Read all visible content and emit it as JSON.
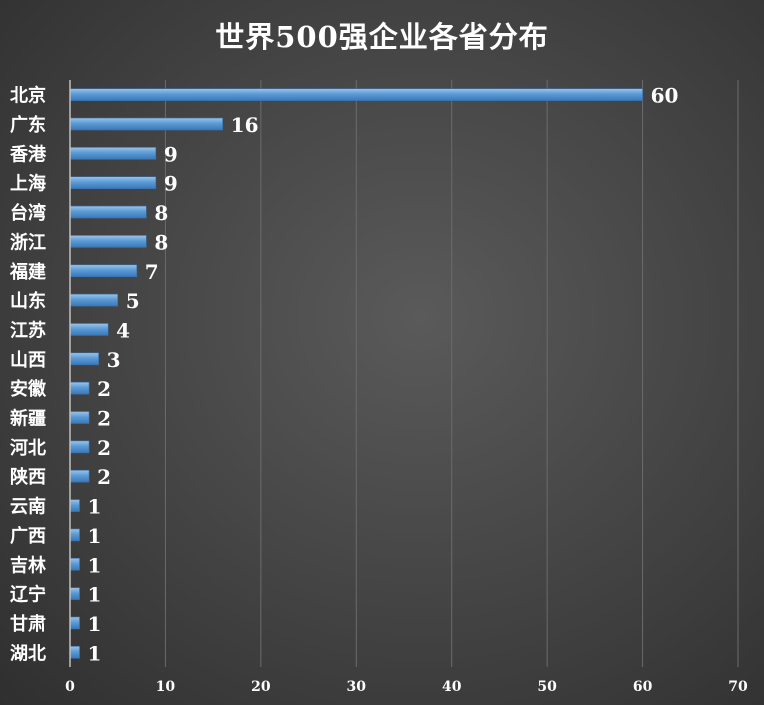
{
  "chart_data": {
    "type": "bar",
    "orientation": "horizontal",
    "title": "世界500强企业各省分布",
    "categories": [
      "北京",
      "广东",
      "香港",
      "上海",
      "台湾",
      "浙江",
      "福建",
      "山东",
      "江苏",
      "山西",
      "安徽",
      "新疆",
      "河北",
      "陕西",
      "云南",
      "广西",
      "吉林",
      "辽宁",
      "甘肃",
      "湖北"
    ],
    "values": [
      60,
      16,
      9,
      9,
      8,
      8,
      7,
      5,
      4,
      3,
      2,
      2,
      2,
      2,
      1,
      1,
      1,
      1,
      1,
      1
    ],
    "xlim": [
      0,
      70
    ],
    "xticks": [
      0,
      10,
      20,
      30,
      40,
      50,
      60,
      70
    ],
    "grid": true,
    "data_labels": true,
    "bar_color": "#5b9bd5"
  }
}
